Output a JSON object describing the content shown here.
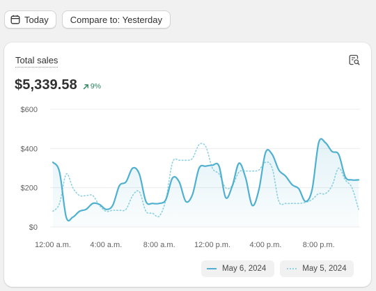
{
  "toolbar": {
    "date_button": {
      "label": "Today",
      "icon": "calendar-icon"
    },
    "compare_button": {
      "label": "Compare to: Yesterday"
    }
  },
  "card": {
    "title": "Total sales",
    "icon": "explore-report-icon",
    "value": "$5,339.58",
    "change": "9%",
    "change_direction": "up",
    "change_color": "#29845a"
  },
  "legend": {
    "current": "May 6, 2024",
    "previous": "May 5, 2024"
  },
  "chart_data": {
    "type": "line",
    "x_tick_labels": [
      "12:00 a.m.",
      "4:00 a.m.",
      "8:00 a.m.",
      "12:00 p.m.",
      "4:00 p.m.",
      "8:00 p.m."
    ],
    "y_tick_labels": [
      "$0",
      "$200",
      "$400",
      "$600"
    ],
    "ylim": [
      0,
      600
    ],
    "x_unit": "hours since midnight",
    "grid": true,
    "legend_position": "bottom-right",
    "series": [
      {
        "name": "May 6, 2024",
        "color": "#4fb0cf",
        "style": "solid",
        "area_fill": true,
        "x": [
          0,
          0.5,
          1.0,
          1.5,
          2.0,
          2.5,
          3.0,
          3.5,
          4.0,
          4.5,
          5.0,
          5.5,
          6.0,
          6.5,
          7.0,
          7.5,
          8.0,
          8.5,
          9.0,
          9.5,
          10.0,
          10.5,
          11.0,
          11.5,
          12.0,
          12.5,
          13.0,
          13.5,
          14.0,
          14.5,
          15.0,
          15.5,
          16.0,
          16.5,
          17.0,
          17.5,
          18.0,
          18.5,
          19.0,
          19.5,
          20.0,
          20.5,
          21.0,
          21.5,
          22.0,
          22.5,
          23.0
        ],
        "values": [
          330,
          280,
          50,
          50,
          80,
          90,
          120,
          115,
          90,
          110,
          210,
          230,
          300,
          270,
          130,
          120,
          120,
          140,
          250,
          230,
          130,
          165,
          300,
          310,
          315,
          310,
          150,
          210,
          325,
          250,
          110,
          190,
          380,
          370,
          290,
          260,
          215,
          195,
          130,
          190,
          430,
          430,
          385,
          370,
          255,
          240,
          240
        ]
      },
      {
        "name": "May 5, 2024",
        "color": "#8fd2e3",
        "style": "dotted",
        "area_fill": false,
        "x": [
          0,
          0.5,
          1.0,
          1.5,
          2.0,
          2.5,
          3.0,
          3.5,
          4.0,
          4.5,
          5.0,
          5.5,
          6.0,
          6.5,
          7.0,
          7.5,
          8.0,
          8.5,
          9.0,
          9.5,
          10.0,
          10.5,
          11.0,
          11.5,
          12.0,
          12.5,
          13.0,
          13.5,
          14.0,
          14.5,
          15.0,
          15.5,
          16.0,
          16.5,
          17.0,
          17.5,
          18.0,
          18.5,
          19.0,
          19.5,
          20.0,
          20.5,
          21.0,
          21.5,
          22.0,
          22.5,
          23.0
        ],
        "values": [
          80,
          120,
          270,
          200,
          160,
          160,
          160,
          110,
          80,
          85,
          85,
          90,
          160,
          180,
          80,
          70,
          55,
          140,
          330,
          340,
          340,
          350,
          420,
          410,
          300,
          270,
          200,
          210,
          280,
          285,
          285,
          290,
          330,
          300,
          130,
          120,
          120,
          120,
          125,
          140,
          170,
          170,
          210,
          300,
          240,
          200,
          90
        ]
      }
    ]
  }
}
